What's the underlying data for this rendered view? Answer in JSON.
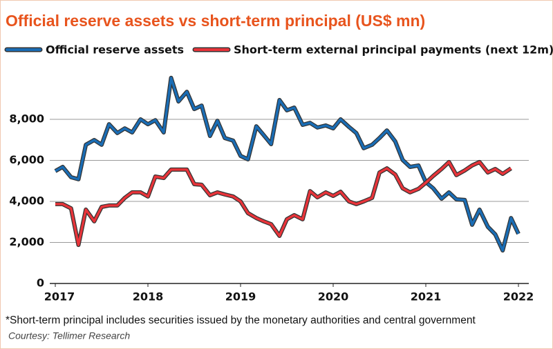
{
  "chart_data": {
    "type": "line",
    "title": "Official reserve assets vs short-term principal (US$ mn)",
    "footnote": "*Short-term principal includes securities issued by the monetary authorities and central government",
    "source": "Courtesy: Tellimer Research",
    "x": [
      2017,
      2017.08,
      2017.17,
      2017.25,
      2017.33,
      2017.42,
      2017.5,
      2017.58,
      2017.67,
      2017.75,
      2017.83,
      2017.92,
      2018,
      2018.08,
      2018.17,
      2018.25,
      2018.33,
      2018.42,
      2018.5,
      2018.58,
      2018.67,
      2018.75,
      2018.83,
      2018.92,
      2019,
      2019.08,
      2019.17,
      2019.25,
      2019.33,
      2019.42,
      2019.5,
      2019.58,
      2019.67,
      2019.75,
      2019.83,
      2019.92,
      2020,
      2020.08,
      2020.17,
      2020.25,
      2020.33,
      2020.42,
      2020.5,
      2020.58,
      2020.67,
      2020.75,
      2020.83,
      2020.92,
      2021,
      2021.08,
      2021.17,
      2021.25,
      2021.33,
      2021.42,
      2021.5,
      2021.58,
      2021.67,
      2021.75,
      2021.83,
      2021.92,
      2022
    ],
    "series": [
      {
        "name": "Official reserve assets",
        "color": "#1a6db5",
        "values": [
          5480,
          5680,
          5180,
          5080,
          6760,
          6990,
          6760,
          7760,
          7330,
          7560,
          7360,
          8000,
          7760,
          7960,
          7360,
          10020,
          8870,
          9340,
          8500,
          8670,
          7190,
          7930,
          7090,
          6960,
          6220,
          6050,
          7660,
          7230,
          6790,
          8940,
          8440,
          8570,
          7730,
          7830,
          7600,
          7700,
          7560,
          8000,
          7630,
          7330,
          6590,
          6760,
          7090,
          7460,
          6920,
          6020,
          5680,
          5750,
          4940,
          4640,
          4130,
          4440,
          4100,
          4070,
          2860,
          3600,
          2760,
          2390,
          1610,
          3190,
          2420
        ]
      },
      {
        "name": "Short-term external principal payments (next 12m)",
        "color": "#e8343a",
        "values": [
          3870,
          3870,
          3660,
          1880,
          3600,
          3030,
          3730,
          3800,
          3800,
          4170,
          4440,
          4440,
          4240,
          5210,
          5140,
          5550,
          5550,
          5550,
          4840,
          4810,
          4300,
          4440,
          4340,
          4240,
          4000,
          3430,
          3190,
          3030,
          2890,
          2320,
          3130,
          3330,
          3130,
          4500,
          4200,
          4440,
          4270,
          4470,
          4000,
          3870,
          4000,
          4170,
          5410,
          5610,
          5310,
          4640,
          4440,
          4610,
          4910,
          5240,
          5580,
          5920,
          5280,
          5510,
          5750,
          5920,
          5410,
          5580,
          5340,
          5610,
          null
        ]
      }
    ],
    "xlim": [
      2017,
      2022
    ],
    "xticks": [
      2017,
      2018,
      2019,
      2020,
      2021,
      2022
    ],
    "ylim": [
      0,
      10000
    ],
    "yticks": [
      0,
      {
        "value": 2000,
        "label": "2,000"
      },
      {
        "value": 4000,
        "label": "4,000"
      },
      {
        "value": 6000,
        "label": "6,000"
      },
      {
        "value": 8000,
        "label": "8,000"
      }
    ],
    "grid": true,
    "title_color": "#e8541d"
  }
}
